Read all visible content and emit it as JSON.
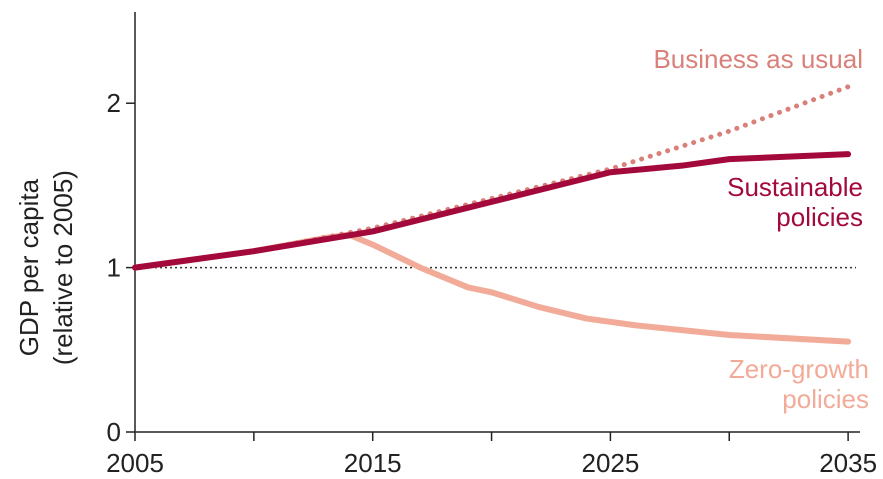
{
  "chart_data": {
    "type": "line",
    "ylabel": [
      "GDP per capita",
      "(relative to 2005)"
    ],
    "xlim": [
      2005,
      2035.5
    ],
    "ylim": [
      0,
      2.5
    ],
    "xticks": [
      2005,
      2015,
      2025,
      2035
    ],
    "minor_xticks": [
      2010,
      2020,
      2030
    ],
    "yticks": [
      0,
      1,
      2
    ],
    "hline": 1,
    "series": [
      {
        "name": "Zero-growth policies",
        "color": "#f2ab98",
        "style": "solid",
        "x": [
          2005,
          2010,
          2013,
          2014,
          2015,
          2017,
          2019,
          2020,
          2022,
          2024,
          2026,
          2030,
          2035
        ],
        "values": [
          1.0,
          1.1,
          1.18,
          1.2,
          1.14,
          1.0,
          0.88,
          0.85,
          0.76,
          0.69,
          0.65,
          0.59,
          0.55
        ]
      },
      {
        "name": "Business as usual",
        "color": "#d9807a",
        "style": "dotted",
        "x": [
          2005,
          2010,
          2015,
          2020,
          2025,
          2030,
          2035
        ],
        "values": [
          1.0,
          1.1,
          1.24,
          1.42,
          1.6,
          1.83,
          2.1
        ]
      },
      {
        "name": "Sustainable policies",
        "color": "#a3093b",
        "style": "solid",
        "x": [
          2005,
          2010,
          2015,
          2020,
          2025,
          2028,
          2030,
          2035
        ],
        "values": [
          1.0,
          1.1,
          1.22,
          1.4,
          1.58,
          1.62,
          1.66,
          1.69
        ]
      }
    ]
  }
}
